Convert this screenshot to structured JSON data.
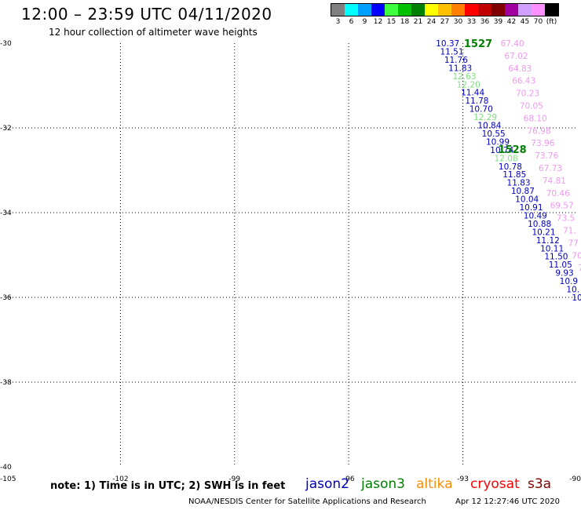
{
  "title": "12:00 – 23:59 UTC 04/11/2020",
  "subtitle": "12 hour collection of altimeter wave heights",
  "color_scale": {
    "colors": [
      "#808080",
      "#00ffff",
      "#00a0ff",
      "#0000ff",
      "#40ff40",
      "#00c000",
      "#008000",
      "#ffff00",
      "#ffc000",
      "#ff8000",
      "#ff0000",
      "#c00000",
      "#800000",
      "#a000a0",
      "#d0a0ff",
      "#ff90ff",
      "#000000"
    ],
    "labels": [
      "3",
      "6",
      "9",
      "12",
      "15",
      "18",
      "21",
      "24",
      "27",
      "30",
      "33",
      "36",
      "39",
      "42",
      "45",
      "70",
      "(ft)"
    ]
  },
  "map": {
    "lon_ticks": [
      "-105",
      "-102",
      "-99",
      "-96",
      "-93",
      "-90"
    ],
    "lat_ticks": [
      "-30",
      "-32",
      "-34",
      "-36",
      "-38",
      "-40"
    ],
    "passes": [
      {
        "id": "1527",
        "color": "#008000",
        "lon": -92.6,
        "lat": -30.0
      },
      {
        "id": "1528",
        "color": "#008000",
        "lon": -91.7,
        "lat": -32.5
      }
    ],
    "tracks": [
      {
        "name": "track-a",
        "start": {
          "lon": -93.4,
          "lat": -30.0
        },
        "end": {
          "lon": -90.0,
          "lat": -36.0
        },
        "points": [
          {
            "v": "10.37",
            "c": "#0000c0"
          },
          {
            "v": "11.51",
            "c": "#0000c0"
          },
          {
            "v": "11.76",
            "c": "#0000c0"
          },
          {
            "v": "11.83",
            "c": "#0000c0"
          },
          {
            "v": "12.63",
            "c": "#80e080"
          },
          {
            "v": "12.20",
            "c": "#80e080"
          },
          {
            "v": "11.44",
            "c": "#0000c0"
          },
          {
            "v": "11.78",
            "c": "#0000c0"
          },
          {
            "v": "10.70",
            "c": "#0000c0"
          },
          {
            "v": "12.29",
            "c": "#80e080"
          },
          {
            "v": "10.84",
            "c": "#0000c0"
          },
          {
            "v": "10.55",
            "c": "#0000c0"
          },
          {
            "v": "10.99",
            "c": "#0000c0"
          },
          {
            "v": "10.74",
            "c": "#0000c0"
          },
          {
            "v": "12.08",
            "c": "#80e080"
          },
          {
            "v": "10.78",
            "c": "#0000c0"
          },
          {
            "v": "11.85",
            "c": "#0000c0"
          },
          {
            "v": "11.83",
            "c": "#0000c0"
          },
          {
            "v": "10.87",
            "c": "#0000c0"
          },
          {
            "v": "10.04",
            "c": "#0000c0"
          },
          {
            "v": "10.91",
            "c": "#0000c0"
          },
          {
            "v": "10.49",
            "c": "#0000c0"
          },
          {
            "v": "10.88",
            "c": "#0000c0"
          },
          {
            "v": "10.21",
            "c": "#0000c0"
          },
          {
            "v": "11.12",
            "c": "#0000c0"
          },
          {
            "v": "10.11",
            "c": "#0000c0"
          },
          {
            "v": "11.50",
            "c": "#0000c0"
          },
          {
            "v": "11.05",
            "c": "#0000c0"
          },
          {
            "v": "9.93",
            "c": "#0000c0"
          },
          {
            "v": "10.9",
            "c": "#0000c0"
          },
          {
            "v": "10.",
            "c": "#0000c0"
          },
          {
            "v": "10",
            "c": "#0000c0"
          }
        ]
      },
      {
        "name": "track-b",
        "start": {
          "lon": -91.7,
          "lat": -30.0
        },
        "end": {
          "lon": -89.9,
          "lat": -35.3
        },
        "points": [
          {
            "v": "67.40",
            "c": "#ee99ee"
          },
          {
            "v": "67.02",
            "c": "#ee99ee"
          },
          {
            "v": "64.83",
            "c": "#ee99ee"
          },
          {
            "v": "66.43",
            "c": "#ee99ee"
          },
          {
            "v": "70.23",
            "c": "#ee99ee"
          },
          {
            "v": "70.05",
            "c": "#ee99ee"
          },
          {
            "v": "68.10",
            "c": "#ee99ee"
          },
          {
            "v": "76.98",
            "c": "#ee99ee"
          },
          {
            "v": "73.96",
            "c": "#ee99ee"
          },
          {
            "v": "73.76",
            "c": "#ee99ee"
          },
          {
            "v": "67.73",
            "c": "#ee99ee"
          },
          {
            "v": "74.81",
            "c": "#ee99ee"
          },
          {
            "v": "70.46",
            "c": "#ee99ee"
          },
          {
            "v": "69.57",
            "c": "#ee99ee"
          },
          {
            "v": "73.5",
            "c": "#ee99ee"
          },
          {
            "v": "71.",
            "c": "#ee99ee"
          },
          {
            "v": "77",
            "c": "#ee99ee"
          },
          {
            "v": "70",
            "c": "#ee99ee"
          },
          {
            "v": "7",
            "c": "#ee99ee"
          }
        ]
      }
    ]
  },
  "note": "note:  1) Time is in UTC;  2) SWH is in feet",
  "legend": [
    {
      "label": "jason2",
      "color": "#0000c0"
    },
    {
      "label": "jason3",
      "color": "#008000"
    },
    {
      "label": "altika",
      "color": "#ff8c00"
    },
    {
      "label": "cryosat",
      "color": "#ff0000"
    },
    {
      "label": "s3a",
      "color": "#800000"
    }
  ],
  "footer": {
    "credit": "NOAA/NESDIS Center for Satellite Applications and Research",
    "timestamp": "Apr 12 12:27:46 UTC 2020"
  }
}
